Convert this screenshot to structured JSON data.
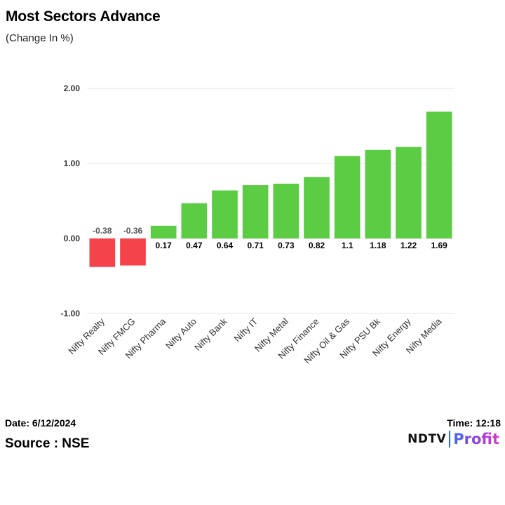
{
  "header": {
    "title": "Most Sectors Advance",
    "subtitle": "(Change In %)"
  },
  "chart_data": {
    "type": "bar",
    "title": "Most Sectors Advance",
    "subtitle": "(Change In %)",
    "xlabel": "",
    "ylabel": "",
    "categories": [
      "Nifty Realty",
      "Nifty FMCG",
      "Nifty Pharma",
      "Nifty Auto",
      "Nifty Bank",
      "Nifty IT",
      "Nifty Metal",
      "Nifty Finance",
      "Nifty Oil & Gas",
      "Nifty PSU Bk",
      "Nifty Energy",
      "Nifty Media"
    ],
    "values": [
      -0.38,
      -0.36,
      0.17,
      0.47,
      0.64,
      0.71,
      0.73,
      0.82,
      1.1,
      1.18,
      1.22,
      1.69
    ],
    "data_labels": [
      "-0.38",
      "-0.36",
      "0.17",
      "0.47",
      "0.64",
      "0.71",
      "0.73",
      "0.82",
      "1.1",
      "1.18",
      "1.22",
      "1.69"
    ],
    "ylim": [
      -1,
      2
    ],
    "yticks": [
      2,
      1,
      0,
      -1
    ],
    "ytick_labels": [
      "2.00",
      "1.00",
      "0.00",
      "-1.00"
    ],
    "grid": true,
    "legend": "none",
    "colors": {
      "positive": "#5ccc45",
      "negative": "#f5434c",
      "grid": "#e4e4e4",
      "axis_text": "#333333"
    }
  },
  "footer": {
    "date": "Date: 6/12/2024",
    "source": "Source : NSE",
    "time": "Time: 12:18",
    "logo_ndtv": "NDTV",
    "logo_profit": "Profit"
  }
}
